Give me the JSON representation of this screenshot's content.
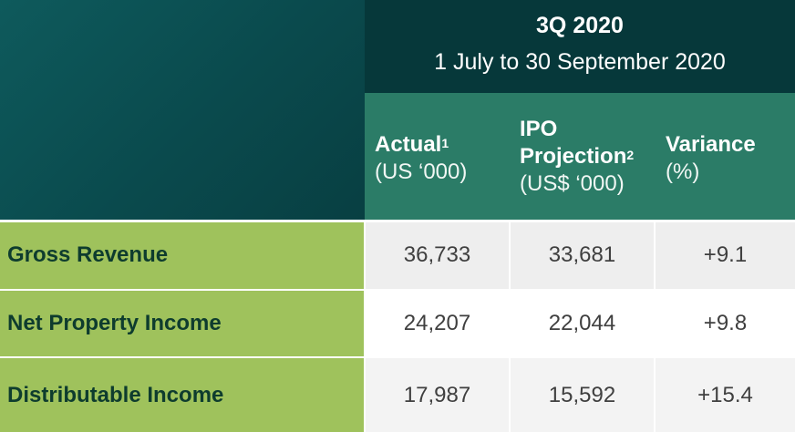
{
  "header": {
    "period_title": "3Q 2020",
    "period_range": "1 July to 30 September 2020"
  },
  "columns": [
    {
      "title": "Actual",
      "superscript": "1",
      "unit": "(US ‘000)"
    },
    {
      "title_line1": "IPO",
      "title_line2": "Projection",
      "superscript": "2",
      "unit": "(US$ ‘000)"
    },
    {
      "title": "Variance",
      "unit": "(%)"
    }
  ],
  "rows": [
    {
      "label": "Gross Revenue",
      "actual": "36,733",
      "ipo_projection": "33,681",
      "variance": "+9.1"
    },
    {
      "label": "Net Property Income",
      "actual": "24,207",
      "ipo_projection": "22,044",
      "variance": "+9.8"
    },
    {
      "label": "Distributable Income",
      "actual": "17,987",
      "ipo_projection": "15,592",
      "variance": "+15.4"
    }
  ],
  "colors": {
    "corner": "#0a4a4d",
    "period_header": "#06383a",
    "column_header": "#2b7c67",
    "row_label": "#9fc25c",
    "row_label_text": "#0e3c2e"
  }
}
